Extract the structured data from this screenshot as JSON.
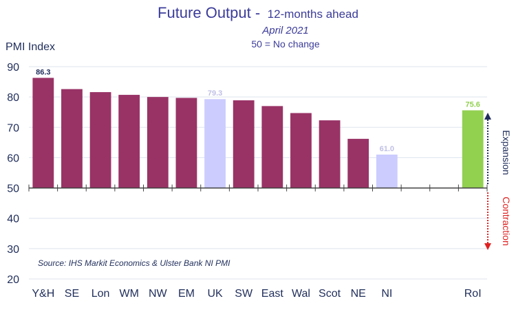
{
  "chart_data": {
    "type": "bar",
    "title": "Future Output -",
    "title_suffix": "12-months ahead",
    "subtitle": "April 2021",
    "subtitle2": "50 = No change",
    "ylabel": "PMI Index",
    "xlabel": "",
    "ylim": [
      20,
      90
    ],
    "baseline": 50,
    "yticks": [
      90,
      80,
      70,
      60,
      50,
      40,
      30,
      20
    ],
    "categories": [
      "Y&H",
      "SE",
      "Lon",
      "WM",
      "NW",
      "EM",
      "UK",
      "SW",
      "East",
      "Wal",
      "Scot",
      "NE",
      "NI",
      "",
      "",
      "RoI"
    ],
    "values": [
      86.3,
      82.6,
      81.6,
      80.7,
      80.0,
      79.7,
      79.3,
      78.9,
      77.0,
      74.7,
      72.3,
      66.2,
      61.0,
      null,
      null,
      75.6
    ],
    "colors": [
      "#993366",
      "#993366",
      "#993366",
      "#993366",
      "#993366",
      "#993366",
      "#ccccff",
      "#993366",
      "#993366",
      "#993366",
      "#993366",
      "#993366",
      "#ccccff",
      "",
      "",
      "#92d050"
    ],
    "data_labels": [
      {
        "index": 0,
        "text": "86.3",
        "color": "#1f2d5a"
      },
      {
        "index": 6,
        "text": "79.3",
        "color": "#bfbfe6"
      },
      {
        "index": 12,
        "text": "61.0",
        "color": "#bfbfe6"
      },
      {
        "index": 15,
        "text": "75.6",
        "color": "#92d050"
      }
    ],
    "grid": true,
    "annotations": {
      "expansion": "Expansion",
      "contraction": "Contraction",
      "source": "Source: IHS Markit Economics & Ulster Bank NI PMI"
    }
  }
}
